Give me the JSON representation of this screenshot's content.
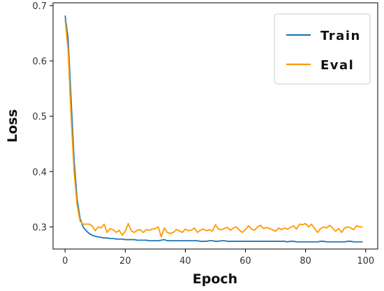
{
  "chart_data": {
    "type": "line",
    "title": "",
    "xlabel": "Epoch",
    "ylabel": "Loss",
    "xlim": [
      -4,
      104
    ],
    "ylim": [
      0.26,
      0.705
    ],
    "xticks": [
      0,
      20,
      40,
      60,
      80,
      100
    ],
    "xtick_labels": [
      "0",
      "20",
      "40",
      "60",
      "80",
      "100"
    ],
    "yticks": [
      0.3,
      0.4,
      0.5,
      0.6,
      0.7
    ],
    "ytick_labels": [
      "0.3",
      "0.4",
      "0.5",
      "0.6",
      "0.7"
    ],
    "grid": false,
    "legend_position": "top-right",
    "x": [
      0,
      1,
      2,
      3,
      4,
      5,
      6,
      7,
      8,
      9,
      10,
      11,
      12,
      13,
      14,
      15,
      16,
      17,
      18,
      19,
      20,
      21,
      22,
      23,
      24,
      25,
      26,
      27,
      28,
      29,
      30,
      31,
      32,
      33,
      34,
      35,
      36,
      37,
      38,
      39,
      40,
      41,
      42,
      43,
      44,
      45,
      46,
      47,
      48,
      49,
      50,
      51,
      52,
      53,
      54,
      55,
      56,
      57,
      58,
      59,
      60,
      61,
      62,
      63,
      64,
      65,
      66,
      67,
      68,
      69,
      70,
      71,
      72,
      73,
      74,
      75,
      76,
      77,
      78,
      79,
      80,
      81,
      82,
      83,
      84,
      85,
      86,
      87,
      88,
      89,
      90,
      91,
      92,
      93,
      94,
      95,
      96,
      97,
      98,
      99
    ],
    "series": [
      {
        "name": "Train",
        "color": "#1f77b4",
        "values": [
          0.682,
          0.64,
          0.53,
          0.42,
          0.35,
          0.315,
          0.3,
          0.293,
          0.288,
          0.285,
          0.283,
          0.282,
          0.281,
          0.28,
          0.28,
          0.279,
          0.279,
          0.278,
          0.278,
          0.278,
          0.277,
          0.277,
          0.277,
          0.277,
          0.276,
          0.276,
          0.276,
          0.276,
          0.275,
          0.275,
          0.275,
          0.275,
          0.276,
          0.277,
          0.275,
          0.275,
          0.275,
          0.275,
          0.275,
          0.275,
          0.275,
          0.275,
          0.275,
          0.275,
          0.275,
          0.274,
          0.274,
          0.274,
          0.275,
          0.275,
          0.274,
          0.274,
          0.275,
          0.275,
          0.274,
          0.274,
          0.274,
          0.274,
          0.274,
          0.274,
          0.274,
          0.274,
          0.274,
          0.274,
          0.274,
          0.274,
          0.274,
          0.274,
          0.274,
          0.274,
          0.274,
          0.274,
          0.274,
          0.274,
          0.273,
          0.274,
          0.274,
          0.273,
          0.273,
          0.273,
          0.273,
          0.273,
          0.273,
          0.273,
          0.273,
          0.274,
          0.274,
          0.273,
          0.273,
          0.273,
          0.273,
          0.273,
          0.273,
          0.273,
          0.274,
          0.274,
          0.273,
          0.273,
          0.273,
          0.273
        ]
      },
      {
        "name": "Eval",
        "color": "#ff9900",
        "values": [
          0.675,
          0.62,
          0.5,
          0.4,
          0.34,
          0.31,
          0.305,
          0.305,
          0.305,
          0.302,
          0.293,
          0.3,
          0.298,
          0.305,
          0.29,
          0.297,
          0.295,
          0.29,
          0.294,
          0.285,
          0.292,
          0.306,
          0.293,
          0.29,
          0.294,
          0.295,
          0.29,
          0.295,
          0.294,
          0.296,
          0.297,
          0.3,
          0.282,
          0.298,
          0.29,
          0.288,
          0.29,
          0.295,
          0.293,
          0.29,
          0.296,
          0.293,
          0.294,
          0.298,
          0.29,
          0.294,
          0.296,
          0.293,
          0.295,
          0.292,
          0.304,
          0.296,
          0.295,
          0.297,
          0.299,
          0.294,
          0.298,
          0.3,
          0.294,
          0.29,
          0.295,
          0.302,
          0.296,
          0.294,
          0.3,
          0.303,
          0.297,
          0.299,
          0.297,
          0.295,
          0.292,
          0.298,
          0.295,
          0.298,
          0.296,
          0.299,
          0.302,
          0.296,
          0.305,
          0.304,
          0.306,
          0.3,
          0.305,
          0.297,
          0.29,
          0.297,
          0.3,
          0.298,
          0.303,
          0.298,
          0.292,
          0.297,
          0.29,
          0.298,
          0.3,
          0.298,
          0.295,
          0.302,
          0.3,
          0.3
        ]
      }
    ]
  }
}
